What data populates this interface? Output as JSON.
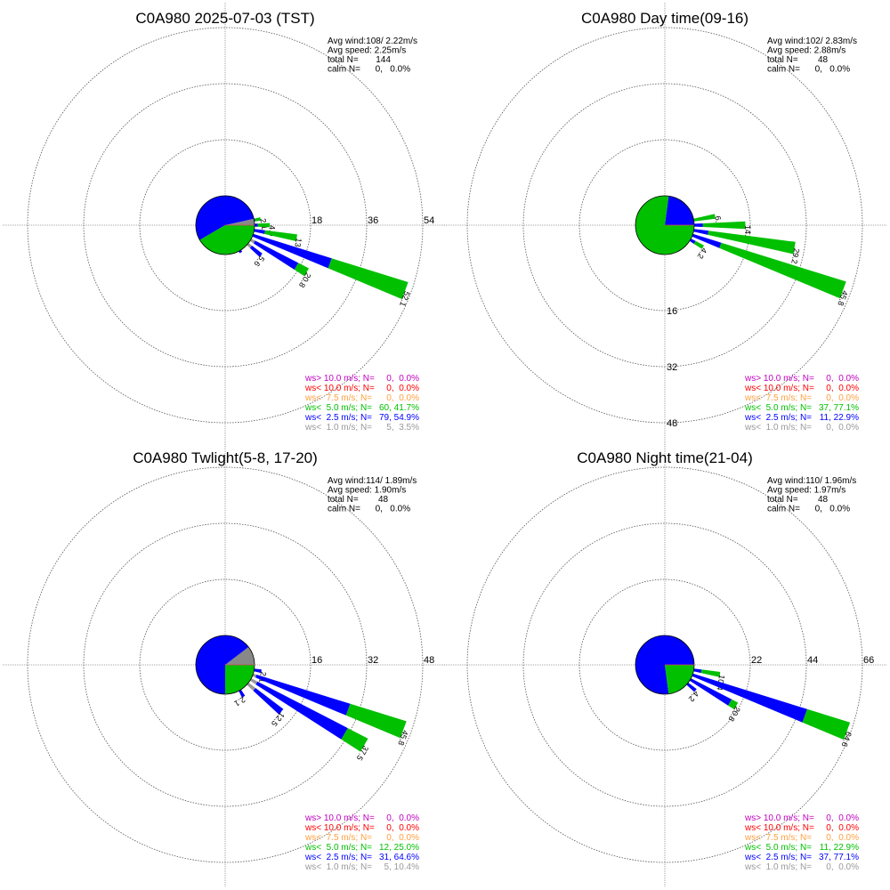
{
  "colors": {
    "gt10": "#c000c0",
    "lt10": "#ff0000",
    "lt7_5": "#ffa040",
    "lt5": "#00c000",
    "lt2_5": "#0000ff",
    "lt1": "#999999"
  },
  "chart_data": [
    {
      "type": "windrose",
      "title": "C0A980 2025-07-03 (TST)",
      "stats": [
        "Avg wind:108/ 2.22m/s",
        "Avg speed: 2.25m/s",
        "total N=       144",
        "calm N=      0,   0.0%"
      ],
      "ring_ticks": [
        "18",
        "36",
        "54"
      ],
      "ring_step": 18,
      "ring_label_axis": "horizontal",
      "pie_percent": {
        "gray": 3.5,
        "blue": 54.9,
        "green": 41.7
      },
      "bars": [
        {
          "dir": 80,
          "total": 2.1,
          "label": "2.1",
          "gray": 0,
          "blue": 0.3,
          "green": 1.8
        },
        {
          "dir": 90,
          "total": 4.9,
          "label": "4.9",
          "gray": 0,
          "blue": 1.0,
          "green": 3.9
        },
        {
          "dir": 100,
          "total": 13.9,
          "label": "13.9",
          "gray": 0,
          "blue": 3.5,
          "green": 10.4
        },
        {
          "dir": 110,
          "total": 52.1,
          "label": "52.1",
          "gray": 0,
          "blue": 26.4,
          "green": 25.7
        },
        {
          "dir": 120,
          "total": 20.8,
          "label": "20.8",
          "gray": 1.4,
          "blue": 15.6,
          "green": 3.8
        },
        {
          "dir": 130,
          "total": 5.6,
          "label": "5.6",
          "gray": 1.4,
          "blue": 4.2,
          "green": 0
        },
        {
          "dir": 150,
          "total": 0.7,
          "label": "",
          "gray": 0,
          "blue": 0.7,
          "green": 0
        }
      ],
      "legend": [
        {
          "label": "ws> 10.0 m/s; N=",
          "value": "  0,  0.0%",
          "color": "gt10"
        },
        {
          "label": "ws< 10.0 m/s; N=",
          "value": "  0,  0.0%",
          "color": "lt10"
        },
        {
          "label": "ws<  7.5 m/s; N=",
          "value": "  0,  0.0%",
          "color": "lt7_5"
        },
        {
          "label": "ws<  5.0 m/s; N=",
          "value": "60, 41.7%",
          "color": "lt5"
        },
        {
          "label": "ws<  2.5 m/s; N=",
          "value": "79, 54.9%",
          "color": "lt2_5"
        },
        {
          "label": "ws<  1.0 m/s; N=",
          "value": "  5,  3.5%",
          "color": "lt1"
        }
      ]
    },
    {
      "type": "windrose",
      "title": "C0A980 Day time(09-16)",
      "stats": [
        "Avg wind:102/ 2.83m/s",
        "Avg speed: 2.88m/s",
        "total N=        48",
        "calm N=      0,   0.0%"
      ],
      "ring_ticks": [
        "16",
        "32",
        "48"
      ],
      "ring_step": 16,
      "ring_label_axis": "vertical",
      "pie_percent": {
        "gray": 0,
        "blue": 22.9,
        "green": 77.1
      },
      "bars": [
        {
          "dir": 80,
          "total": 6.2,
          "label": "6.2",
          "gray": 0,
          "blue": 0,
          "green": 6.2
        },
        {
          "dir": 90,
          "total": 14.6,
          "label": "14.6",
          "gray": 0,
          "blue": 2.5,
          "green": 12.1
        },
        {
          "dir": 100,
          "total": 29.2,
          "label": "29.2",
          "gray": 0,
          "blue": 4.2,
          "green": 25.0
        },
        {
          "dir": 110,
          "total": 45.8,
          "label": "45.8",
          "gray": 0,
          "blue": 8.5,
          "green": 37.3
        },
        {
          "dir": 120,
          "total": 4.2,
          "label": "4.2",
          "gray": 0,
          "blue": 1.5,
          "green": 2.7
        }
      ],
      "legend": [
        {
          "label": "ws> 10.0 m/s; N=",
          "value": "  0,  0.0%",
          "color": "gt10"
        },
        {
          "label": "ws< 10.0 m/s; N=",
          "value": "  0,  0.0%",
          "color": "lt10"
        },
        {
          "label": "ws<  7.5 m/s; N=",
          "value": "  0,  0.0%",
          "color": "lt7_5"
        },
        {
          "label": "ws<  5.0 m/s; N=",
          "value": "37, 77.1%",
          "color": "lt5"
        },
        {
          "label": "ws<  2.5 m/s; N=",
          "value": "11, 22.9%",
          "color": "lt2_5"
        },
        {
          "label": "ws<  1.0 m/s; N=",
          "value": "  0,  0.0%",
          "color": "lt1"
        }
      ]
    },
    {
      "type": "windrose",
      "title": "C0A980 Twlight(5-8, 17-20)",
      "stats": [
        "Avg wind:114/ 1.89m/s",
        "Avg speed: 1.90m/s",
        "total N=        48",
        "calm N=      0,   0.0%"
      ],
      "ring_ticks": [
        "16",
        "32",
        "48"
      ],
      "ring_step": 16,
      "ring_label_axis": "horizontal",
      "pie_percent": {
        "gray": 10.4,
        "blue": 64.6,
        "green": 25.0
      },
      "bars": [
        {
          "dir": 100,
          "total": 2.1,
          "label": "2.1",
          "gray": 0,
          "blue": 2.1,
          "green": 0
        },
        {
          "dir": 110,
          "total": 45.8,
          "label": "45.8",
          "gray": 1.0,
          "blue": 28.0,
          "green": 16.8
        },
        {
          "dir": 120,
          "total": 37.5,
          "label": "37.5",
          "gray": 2.0,
          "blue": 29.0,
          "green": 6.5
        },
        {
          "dir": 130,
          "total": 12.5,
          "label": "12.5",
          "gray": 2.5,
          "blue": 10.0,
          "green": 0
        },
        {
          "dir": 150,
          "total": 2.1,
          "label": "2.1",
          "gray": 0,
          "blue": 2.1,
          "green": 0
        }
      ],
      "legend": [
        {
          "label": "ws> 10.0 m/s; N=",
          "value": "  0,  0.0%",
          "color": "gt10"
        },
        {
          "label": "ws< 10.0 m/s; N=",
          "value": "  0,  0.0%",
          "color": "lt10"
        },
        {
          "label": "ws<  7.5 m/s; N=",
          "value": "  0,  0.0%",
          "color": "lt7_5"
        },
        {
          "label": "ws<  5.0 m/s; N=",
          "value": "12, 25.0%",
          "color": "lt5"
        },
        {
          "label": "ws<  2.5 m/s; N=",
          "value": "31, 64.6%",
          "color": "lt2_5"
        },
        {
          "label": "ws<  1.0 m/s; N=",
          "value": "  5, 10.4%",
          "color": "lt1"
        }
      ]
    },
    {
      "type": "windrose",
      "title": "C0A980 Night time(21-04)",
      "stats": [
        "Avg wind:110/ 1.96m/s",
        "Avg speed: 1.97m/s",
        "total N=        48",
        "calm N=      0,   0.0%"
      ],
      "ring_ticks": [
        "22",
        "44",
        "66"
      ],
      "ring_step": 22,
      "ring_label_axis": "horizontal",
      "pie_percent": {
        "gray": 0,
        "blue": 77.1,
        "green": 22.9
      },
      "bars": [
        {
          "dir": 100,
          "total": 10.4,
          "label": "10.4",
          "gray": 0,
          "blue": 3.0,
          "green": 7.4
        },
        {
          "dir": 110,
          "total": 64.6,
          "label": "64.6",
          "gray": 0,
          "blue": 47.0,
          "green": 17.6
        },
        {
          "dir": 120,
          "total": 20.8,
          "label": "20.8",
          "gray": 0,
          "blue": 18.0,
          "green": 2.8
        },
        {
          "dir": 130,
          "total": 4.2,
          "label": "4.2",
          "gray": 0,
          "blue": 4.2,
          "green": 0
        }
      ],
      "legend": [
        {
          "label": "ws> 10.0 m/s; N=",
          "value": "  0,  0.0%",
          "color": "gt10"
        },
        {
          "label": "ws< 10.0 m/s; N=",
          "value": "  0,  0.0%",
          "color": "lt10"
        },
        {
          "label": "ws<  7.5 m/s; N=",
          "value": "  0,  0.0%",
          "color": "lt7_5"
        },
        {
          "label": "ws<  5.0 m/s; N=",
          "value": "11, 22.9%",
          "color": "lt5"
        },
        {
          "label": "ws<  2.5 m/s; N=",
          "value": "37, 77.1%",
          "color": "lt2_5"
        },
        {
          "label": "ws<  1.0 m/s; N=",
          "value": "  0,  0.0%",
          "color": "lt1"
        }
      ]
    }
  ]
}
